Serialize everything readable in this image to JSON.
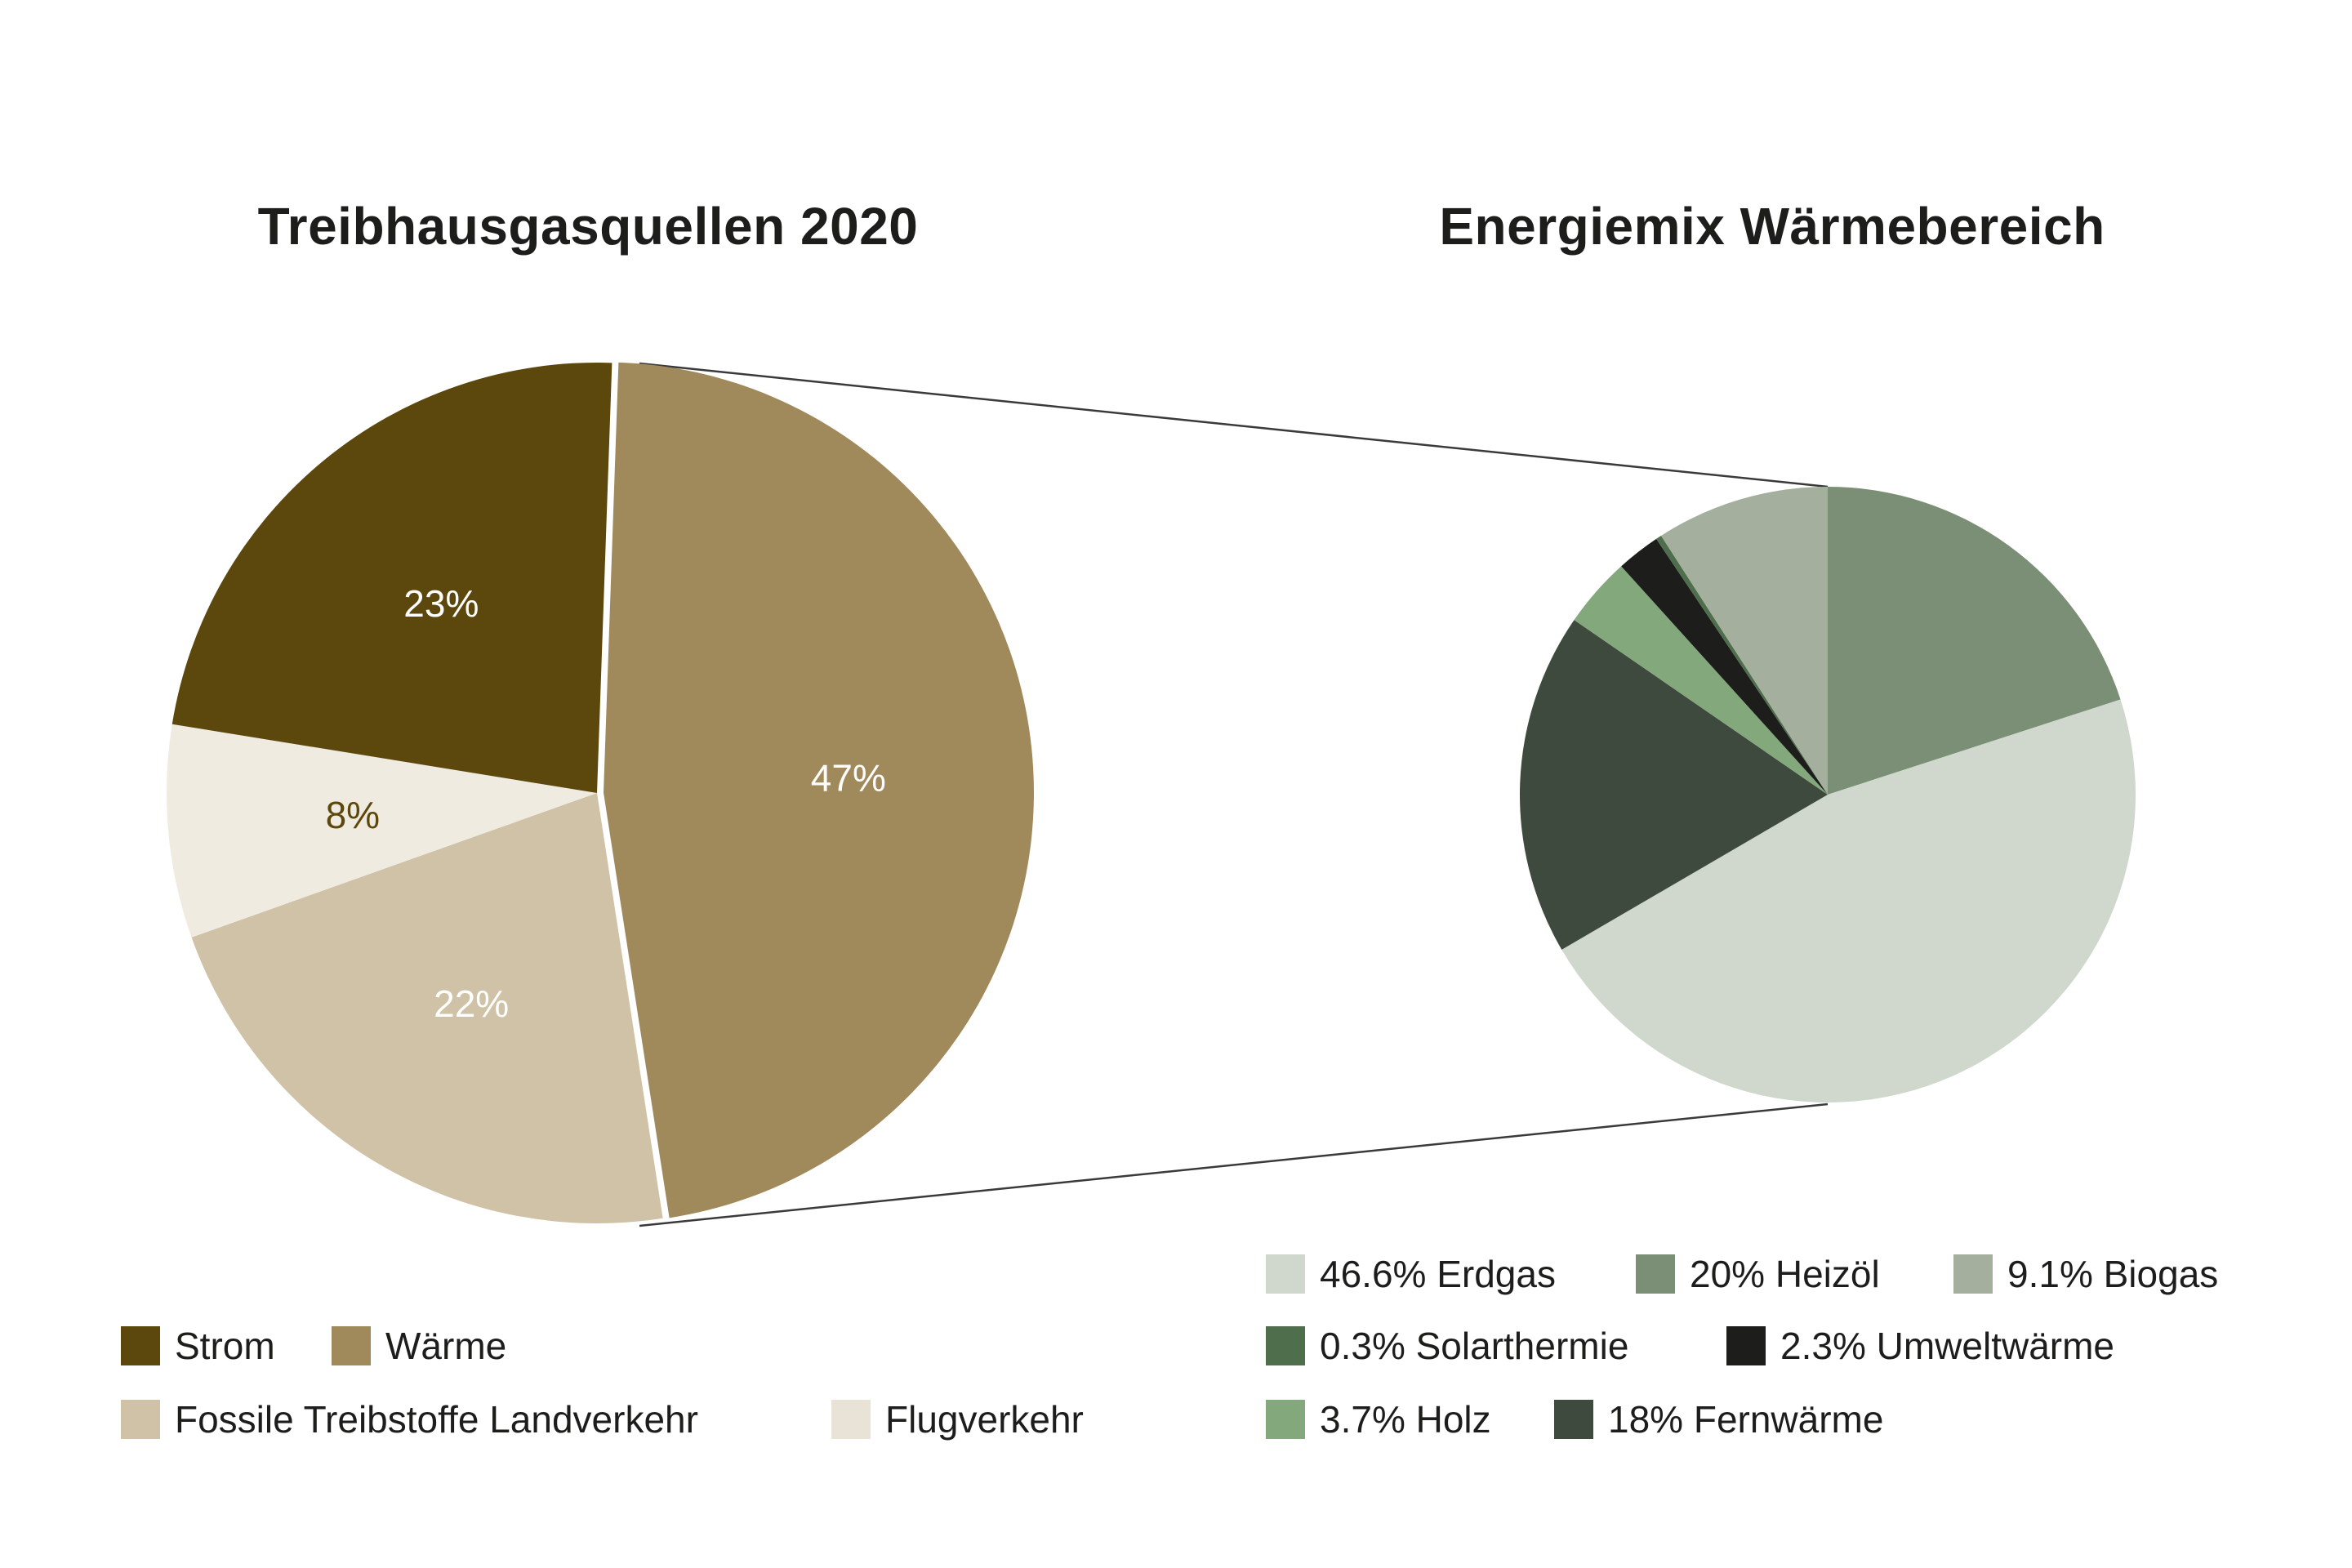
{
  "chart_data": [
    {
      "type": "pie",
      "title": "Treibhausgasquellen 2020",
      "categories": [
        "Wärme",
        "Fossile Treibstoffe Landverkehr",
        "Flugverkehr",
        "Strom"
      ],
      "values": [
        47,
        22,
        8,
        23
      ],
      "labels": [
        "47%",
        "22%",
        "8%",
        "23%"
      ],
      "colors": [
        "#a08a5c",
        "#cfc2a6",
        "#efebe1",
        "#5c470c"
      ],
      "label_colors": [
        "#ffffff",
        "#ffffff",
        "#5c470c",
        "#ffffff"
      ],
      "start_angle_deg": 2,
      "exploded": "Wärme",
      "legend": [
        {
          "label": "Strom",
          "color": "#5c470c"
        },
        {
          "label": "Wärme",
          "color": "#a08a5c"
        },
        {
          "label": "Fossile Treibstoffe Landverkehr",
          "color": "#cfc2a6"
        },
        {
          "label": "Flugverkehr",
          "color": "#e9e2d6"
        }
      ],
      "legend_position": "bottom"
    },
    {
      "type": "pie",
      "title": "Energiemix Wärmebereich",
      "categories": [
        "Heizöl",
        "Erdgas",
        "Fernwärme",
        "Holz",
        "Umweltwärme",
        "Solarthermie",
        "Biogas"
      ],
      "values": [
        20,
        46.6,
        18,
        3.7,
        2.3,
        0.3,
        9.1
      ],
      "colors": [
        "#7b8f76",
        "#d0d8cd",
        "#3f4a3e",
        "#83a87b",
        "#1d1d1b",
        "#4f6e4c",
        "#a4b09d"
      ],
      "start_angle_deg": 0,
      "legend": [
        {
          "label": "46.6% Erdgas",
          "color": "#d0d8cd"
        },
        {
          "label": "20% Heizöl",
          "color": "#7b8f76"
        },
        {
          "label": "9.1% Biogas",
          "color": "#a4b09d"
        },
        {
          "label": "0.3% Solarthermie",
          "color": "#4f6e4c"
        },
        {
          "label": "2.3% Umweltwärme",
          "color": "#1d1d1b"
        },
        {
          "label": "3.7% Holz",
          "color": "#83a87b"
        },
        {
          "label": "18% Fernwärme",
          "color": "#3f4a3e"
        }
      ],
      "legend_position": "bottom"
    }
  ],
  "left": {
    "title": "Treibhausgasquellen 2020",
    "legend": [
      {
        "label": "Strom"
      },
      {
        "label": "Wärme"
      },
      {
        "label": "Fossile Treibstoffe Landverkehr"
      },
      {
        "label": "Flugverkehr"
      }
    ]
  },
  "right": {
    "title": "Energiemix Wärmebereich",
    "legend": [
      {
        "label": "46.6% Erdgas"
      },
      {
        "label": "20% Heizöl"
      },
      {
        "label": "9.1% Biogas"
      },
      {
        "label": "0.3% Solarthermie"
      },
      {
        "label": "2.3% Umweltwärme"
      },
      {
        "label": "3.7% Holz"
      },
      {
        "label": "18% Fernwärme"
      }
    ]
  },
  "connector_color": "#3a3a3a"
}
